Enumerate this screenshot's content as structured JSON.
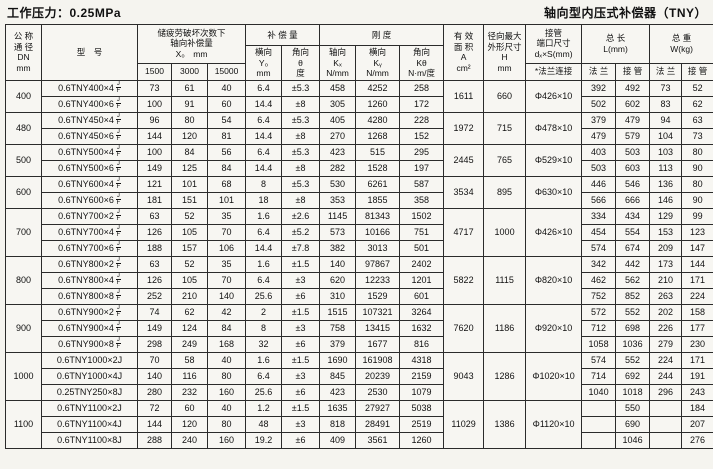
{
  "page": {
    "pressure_label": "工作压力：0.25MPa",
    "title": "轴向型内压式补偿器（TNY）"
  },
  "table": {
    "headers": {
      "dn": "公 称\n通 径\nDN\nmm",
      "model": "型　号",
      "x_group": "储疲劳破坏次数下\n轴向补偿量\nX₀　mm",
      "x_cols": {
        "c1500": "1500",
        "c3000": "3000",
        "c15000": "15000"
      },
      "comp_group": "补 偿 量",
      "comp_lateral": "横向\nY₀\nmm",
      "comp_angular": "角向\nθ\n度",
      "stiff_group": "刚  度",
      "stiff_axial": "轴向\nKₓ\nN/mm",
      "stiff_lateral": "横向\nKᵧ\nN/mm",
      "stiff_angular": "角向\nKθ\nN·m/度",
      "area": "有 效\n面 积\nA\ncm²",
      "h": "径向最大\n外形尺寸\nH\nmm",
      "d": "接管\n端口尺寸\ndₓ×S(mm)",
      "d_sub": "*法兰连接",
      "length": "总  长\nL(mm)",
      "weight": "总  重\nW(kg)",
      "len_flange": "法 兰",
      "len_pipe": "接 管",
      "wt_flange": "法 兰",
      "wt_pipe": "接 管"
    },
    "groups": [
      {
        "dn": "400",
        "area": "1611",
        "h": "660",
        "d": "Φ426×10",
        "rows": [
          {
            "model": "0.6TNY400×4",
            "suffix": [
              "J",
              "F"
            ],
            "x": [
              "73",
              "61",
              "40"
            ],
            "comp": [
              "6.4",
              "±5.3"
            ],
            "stiff": [
              "458",
              "4252",
              "258"
            ],
            "lw": [
              "392",
              "492",
              "73",
              "52"
            ]
          },
          {
            "model": "0.6TNY400×6",
            "suffix": [
              "J",
              "F"
            ],
            "x": [
              "100",
              "91",
              "60"
            ],
            "comp": [
              "14.4",
              "±8"
            ],
            "stiff": [
              "305",
              "1260",
              "172"
            ],
            "lw": [
              "502",
              "602",
              "83",
              "62"
            ]
          }
        ]
      },
      {
        "dn": "480",
        "area": "1972",
        "h": "715",
        "d": "Φ478×10",
        "rows": [
          {
            "model": "0.6TNY450×4",
            "suffix": [
              "J",
              "F"
            ],
            "x": [
              "96",
              "80",
              "54"
            ],
            "comp": [
              "6.4",
              "±5.3"
            ],
            "stiff": [
              "405",
              "4280",
              "228"
            ],
            "lw": [
              "379",
              "479",
              "94",
              "63"
            ]
          },
          {
            "model": "0.6TNY450×6",
            "suffix": [
              "J",
              "F"
            ],
            "x": [
              "144",
              "120",
              "81"
            ],
            "comp": [
              "14.4",
              "±8"
            ],
            "stiff": [
              "270",
              "1268",
              "152"
            ],
            "lw": [
              "479",
              "579",
              "104",
              "73"
            ]
          }
        ]
      },
      {
        "dn": "500",
        "area": "2445",
        "h": "765",
        "d": "Φ529×10",
        "rows": [
          {
            "model": "0.6TNY500×4",
            "suffix": [
              "J",
              "F"
            ],
            "x": [
              "100",
              "84",
              "56"
            ],
            "comp": [
              "6.4",
              "±5.3"
            ],
            "stiff": [
              "423",
              "515",
              "295"
            ],
            "lw": [
              "403",
              "503",
              "103",
              "80"
            ]
          },
          {
            "model": "0.6TNY500×6",
            "suffix": [
              "J",
              "F"
            ],
            "x": [
              "149",
              "125",
              "84"
            ],
            "comp": [
              "14.4",
              "±8"
            ],
            "stiff": [
              "282",
              "1528",
              "197"
            ],
            "lw": [
              "503",
              "603",
              "113",
              "90"
            ]
          }
        ]
      },
      {
        "dn": "600",
        "area": "3534",
        "h": "895",
        "d": "Φ630×10",
        "rows": [
          {
            "model": "0.6TNY600×4",
            "suffix": [
              "J",
              "F"
            ],
            "x": [
              "121",
              "101",
              "68"
            ],
            "comp": [
              "8",
              "±5.3"
            ],
            "stiff": [
              "530",
              "6261",
              "587"
            ],
            "lw": [
              "446",
              "546",
              "136",
              "80"
            ]
          },
          {
            "model": "0.6TNY600×6",
            "suffix": [
              "J",
              "F"
            ],
            "x": [
              "181",
              "151",
              "101"
            ],
            "comp": [
              "18",
              "±8"
            ],
            "stiff": [
              "353",
              "1855",
              "358"
            ],
            "lw": [
              "566",
              "666",
              "146",
              "90"
            ]
          }
        ]
      },
      {
        "dn": "700",
        "area": "4717",
        "h": "1000",
        "d": "Φ426×10",
        "rows": [
          {
            "model": "0.6TNY700×2",
            "suffix": [
              "J",
              "F"
            ],
            "x": [
              "63",
              "52",
              "35"
            ],
            "comp": [
              "1.6",
              "±2.6"
            ],
            "stiff": [
              "1145",
              "81343",
              "1502"
            ],
            "lw": [
              "334",
              "434",
              "129",
              "99"
            ]
          },
          {
            "model": "0.6TNY700×4",
            "suffix": [
              "J",
              "F"
            ],
            "x": [
              "126",
              "105",
              "70"
            ],
            "comp": [
              "6.4",
              "±5.2"
            ],
            "stiff": [
              "573",
              "10166",
              "751"
            ],
            "lw": [
              "454",
              "554",
              "153",
              "123"
            ]
          },
          {
            "model": "0.6TNY700×6",
            "suffix": [
              "J",
              "F"
            ],
            "x": [
              "188",
              "157",
              "106"
            ],
            "comp": [
              "14.4",
              "±7.8"
            ],
            "stiff": [
              "382",
              "3013",
              "501"
            ],
            "lw": [
              "574",
              "674",
              "209",
              "147"
            ]
          }
        ]
      },
      {
        "dn": "800",
        "area": "5822",
        "h": "1115",
        "d": "Φ820×10",
        "rows": [
          {
            "model": "0.6TNY800×2",
            "suffix": [
              "J",
              "F"
            ],
            "x": [
              "63",
              "52",
              "35"
            ],
            "comp": [
              "1.6",
              "±1.5"
            ],
            "stiff": [
              "140",
              "97867",
              "2402"
            ],
            "lw": [
              "342",
              "442",
              "173",
              "144"
            ]
          },
          {
            "model": "0.6TNY800×4",
            "suffix": [
              "J",
              "F"
            ],
            "x": [
              "126",
              "105",
              "70"
            ],
            "comp": [
              "6.4",
              "±3"
            ],
            "stiff": [
              "620",
              "12233",
              "1201"
            ],
            "lw": [
              "462",
              "562",
              "210",
              "171"
            ]
          },
          {
            "model": "0.6TNY800×8",
            "suffix": [
              "J",
              "F"
            ],
            "x": [
              "252",
              "210",
              "140"
            ],
            "comp": [
              "25.6",
              "±6"
            ],
            "stiff": [
              "310",
              "1529",
              "601"
            ],
            "lw": [
              "752",
              "852",
              "263",
              "224"
            ]
          }
        ]
      },
      {
        "dn": "900",
        "area": "7620",
        "h": "1186",
        "d": "Φ920×10",
        "rows": [
          {
            "model": "0.6TNY900×2",
            "suffix": [
              "J",
              "F"
            ],
            "x": [
              "74",
              "62",
              "42"
            ],
            "comp": [
              "2",
              "±1.5"
            ],
            "stiff": [
              "1515",
              "107321",
              "3264"
            ],
            "lw": [
              "572",
              "552",
              "202",
              "158"
            ]
          },
          {
            "model": "0.6TNY900×4",
            "suffix": [
              "J",
              "F"
            ],
            "x": [
              "149",
              "124",
              "84"
            ],
            "comp": [
              "8",
              "±3"
            ],
            "stiff": [
              "758",
              "13415",
              "1632"
            ],
            "lw": [
              "712",
              "698",
              "226",
              "177"
            ]
          },
          {
            "model": "0.6TNY900×8",
            "suffix": [
              "J",
              "F"
            ],
            "x": [
              "298",
              "249",
              "168"
            ],
            "comp": [
              "32",
              "±6"
            ],
            "stiff": [
              "379",
              "1677",
              "816"
            ],
            "lw": [
              "1058",
              "1036",
              "279",
              "230"
            ]
          }
        ]
      },
      {
        "dn": "1000",
        "area": "9043",
        "h": "1286",
        "d": "Φ1020×10",
        "rows": [
          {
            "model": "0.6TNY1000×2J",
            "suffix": null,
            "x": [
              "70",
              "58",
              "40"
            ],
            "comp": [
              "1.6",
              "±1.5"
            ],
            "stiff": [
              "1690",
              "161908",
              "4318"
            ],
            "lw": [
              "574",
              "552",
              "224",
              "171"
            ]
          },
          {
            "model": "0.6TNY1000×4J",
            "suffix": null,
            "x": [
              "140",
              "116",
              "80"
            ],
            "comp": [
              "6.4",
              "±3"
            ],
            "stiff": [
              "845",
              "20239",
              "2159"
            ],
            "lw": [
              "714",
              "692",
              "244",
              "191"
            ]
          },
          {
            "model": "0.25TNY250×8J",
            "suffix": null,
            "x": [
              "280",
              "232",
              "160"
            ],
            "comp": [
              "25.6",
              "±6"
            ],
            "stiff": [
              "423",
              "2530",
              "1079"
            ],
            "lw": [
              "1040",
              "1018",
              "296",
              "243"
            ]
          }
        ]
      },
      {
        "dn": "1100",
        "area": "11029",
        "h": "1386",
        "d": "Φ1120×10",
        "rows": [
          {
            "model": "0.6TNY1100×2J",
            "suffix": null,
            "x": [
              "72",
              "60",
              "40"
            ],
            "comp": [
              "1.2",
              "±1.5"
            ],
            "stiff": [
              "1635",
              "27927",
              "5038"
            ],
            "lw": [
              "",
              "550",
              "",
              "184"
            ]
          },
          {
            "model": "0.6TNY1100×4J",
            "suffix": null,
            "x": [
              "144",
              "120",
              "80"
            ],
            "comp": [
              "48",
              "±3"
            ],
            "stiff": [
              "818",
              "28491",
              "2519"
            ],
            "lw": [
              "",
              "690",
              "",
              "207"
            ]
          },
          {
            "model": "0.6TNY1100×8J",
            "suffix": null,
            "x": [
              "288",
              "240",
              "160"
            ],
            "comp": [
              "19.2",
              "±6"
            ],
            "stiff": [
              "409",
              "3561",
              "1260"
            ],
            "lw": [
              "",
              "1046",
              "",
              "276"
            ]
          }
        ]
      }
    ]
  }
}
